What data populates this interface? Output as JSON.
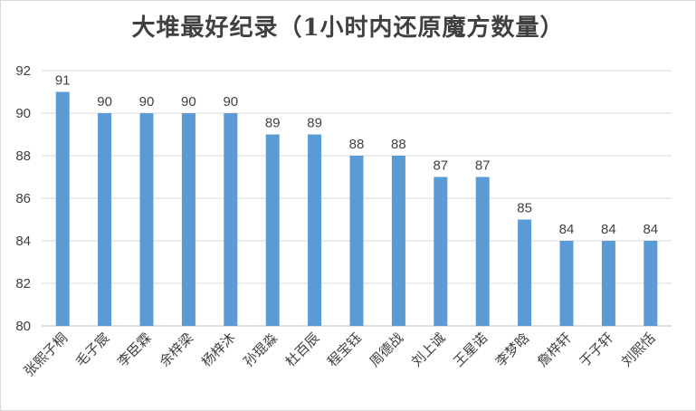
{
  "chart_data": {
    "type": "bar",
    "title": "大堆最好纪录（1小时内还原魔方数量）",
    "xlabel": "",
    "ylabel": "",
    "categories": [
      "张熙子桐",
      "毛子宸",
      "李臣霖",
      "余梓梁",
      "杨梓沐",
      "孙琨淼",
      "杜百辰",
      "程宝钰",
      "周德战",
      "刘上诚",
      "王星诺",
      "李梦晗",
      "詹梓轩",
      "于子轩",
      "刘熙恬"
    ],
    "values": [
      91,
      90,
      90,
      90,
      90,
      89,
      89,
      88,
      88,
      87,
      87,
      85,
      84,
      84,
      84
    ],
    "ylim": [
      80,
      92
    ],
    "yticks": [
      80,
      82,
      84,
      86,
      88,
      90,
      92
    ],
    "grid": true,
    "legend": "none",
    "bar_color": "#5b9bd5",
    "grid_color": "#d9d9d9"
  }
}
